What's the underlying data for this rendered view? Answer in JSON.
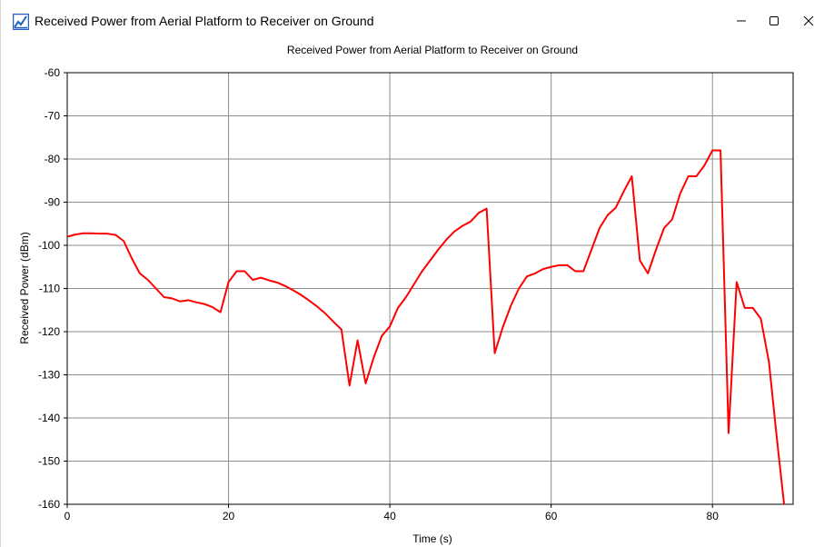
{
  "window": {
    "title": "Received Power from Aerial Platform to Receiver on Ground",
    "icon": "chart-app-icon",
    "controls": {
      "minimize": "minimize-icon",
      "maximize": "maximize-icon",
      "close": "close-icon"
    }
  },
  "chart_data": {
    "type": "line",
    "title": "Received Power from Aerial Platform to Receiver on Ground",
    "xlabel": "Time (s)",
    "ylabel": "Received Power (dBm)",
    "xlim": [
      0,
      90
    ],
    "ylim": [
      -160,
      -60
    ],
    "xticks": [
      0,
      20,
      40,
      60,
      80
    ],
    "yticks": [
      -160,
      -150,
      -140,
      -130,
      -120,
      -110,
      -100,
      -90,
      -80,
      -70,
      -60
    ],
    "xtick_labels": [
      "0",
      "20",
      "40",
      "60",
      "80"
    ],
    "ytick_labels": [
      "-160",
      "-150",
      "-140",
      "-130",
      "-120",
      "-110",
      "-100",
      "-90",
      "-80",
      "-70",
      "-60"
    ],
    "grid": true,
    "legend": "none",
    "series": [
      {
        "color": "#ff0000",
        "x": [
          0,
          1,
          2,
          3,
          4,
          5,
          6,
          7,
          8,
          9,
          10,
          11,
          12,
          13,
          14,
          15,
          16,
          17,
          18,
          19,
          20,
          21,
          22,
          23,
          24,
          25,
          26,
          27,
          28,
          29,
          30,
          31,
          32,
          33,
          34,
          35,
          36,
          37,
          38,
          39,
          40,
          41,
          42,
          43,
          44,
          45,
          46,
          47,
          48,
          49,
          50,
          51,
          52,
          53,
          54,
          55,
          56,
          57,
          58,
          59,
          60,
          61,
          62,
          63,
          64,
          65,
          66,
          67,
          68,
          69,
          70,
          71,
          72,
          73,
          74,
          75,
          76,
          77,
          78,
          79,
          80,
          81,
          82,
          83,
          84,
          85,
          86,
          87,
          88,
          89
        ],
        "y": [
          -98,
          -97.5,
          -97.2,
          -97.2,
          -97.3,
          -97.3,
          -97.6,
          -99,
          -103,
          -106.5,
          -108,
          -110,
          -112,
          -112.3,
          -113,
          -112.7,
          -113.2,
          -113.6,
          -114.3,
          -115.5,
          -108.5,
          -106,
          -106,
          -108,
          -107.5,
          -108.1,
          -108.6,
          -109.4,
          -110.4,
          -111.5,
          -112.8,
          -114.2,
          -115.8,
          -117.7,
          -119.5,
          -132.5,
          -122,
          -132,
          -126,
          -121,
          -118.8,
          -114.5,
          -112,
          -109,
          -106,
          -103.5,
          -101,
          -98.7,
          -96.8,
          -95.5,
          -94.5,
          -92.5,
          -91.5,
          -125,
          -119,
          -114,
          -110,
          -107.2,
          -106.5,
          -105.5,
          -105,
          -104.6,
          -104.6,
          -106,
          -106,
          -101,
          -96,
          -93,
          -91.3,
          -87.5,
          -84,
          -103.5,
          -106.5,
          -101,
          -96,
          -94,
          -88,
          -84,
          -84,
          -81.5,
          -78,
          -78,
          -143.5,
          -108.5,
          -114.5,
          -114.5,
          -117,
          -127,
          -145,
          -162
        ]
      }
    ]
  }
}
